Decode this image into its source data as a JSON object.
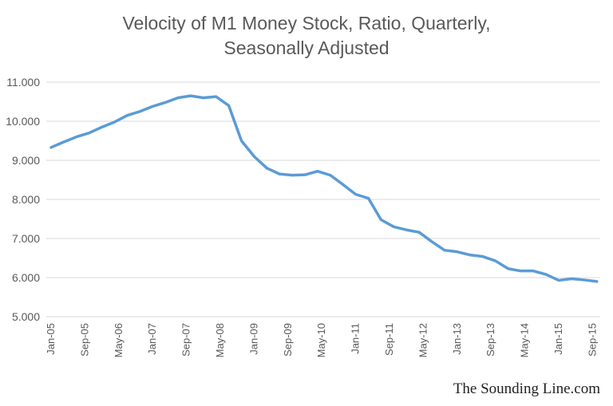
{
  "chart_data": {
    "type": "line",
    "title": "Velocity of M1 Money Stock, Ratio, Quarterly,",
    "subtitle": "Seasonally Adjusted",
    "xlabel": "",
    "ylabel": "",
    "ylim": [
      5,
      11
    ],
    "yticks": [
      "5.000",
      "6.000",
      "7.000",
      "8.000",
      "9.000",
      "10.000",
      "11.000"
    ],
    "xtick_labels": [
      "Jan-05",
      "Sep-05",
      "May-06",
      "Jan-07",
      "Sep-07",
      "May-08",
      "Jan-09",
      "Sep-09",
      "May-10",
      "Jan-11",
      "Sep-11",
      "May-12",
      "Jan-13",
      "Sep-13",
      "May-14",
      "Jan-15",
      "Sep-15"
    ],
    "grid": true,
    "legend": "none",
    "color": "#5B9BD5",
    "x_start": "Jan-05",
    "x_frequency": "quarterly",
    "values": [
      9.33,
      9.47,
      9.6,
      9.7,
      9.85,
      9.98,
      10.15,
      10.25,
      10.38,
      10.48,
      10.6,
      10.65,
      10.6,
      10.63,
      10.4,
      9.5,
      9.1,
      8.8,
      8.65,
      8.62,
      8.63,
      8.72,
      8.62,
      8.38,
      8.13,
      8.03,
      7.48,
      7.3,
      7.22,
      7.16,
      6.92,
      6.7,
      6.66,
      6.58,
      6.54,
      6.43,
      6.23,
      6.17,
      6.17,
      6.08,
      5.93,
      5.97,
      5.94,
      5.9
    ]
  },
  "watermark": "The Sounding Line.com"
}
